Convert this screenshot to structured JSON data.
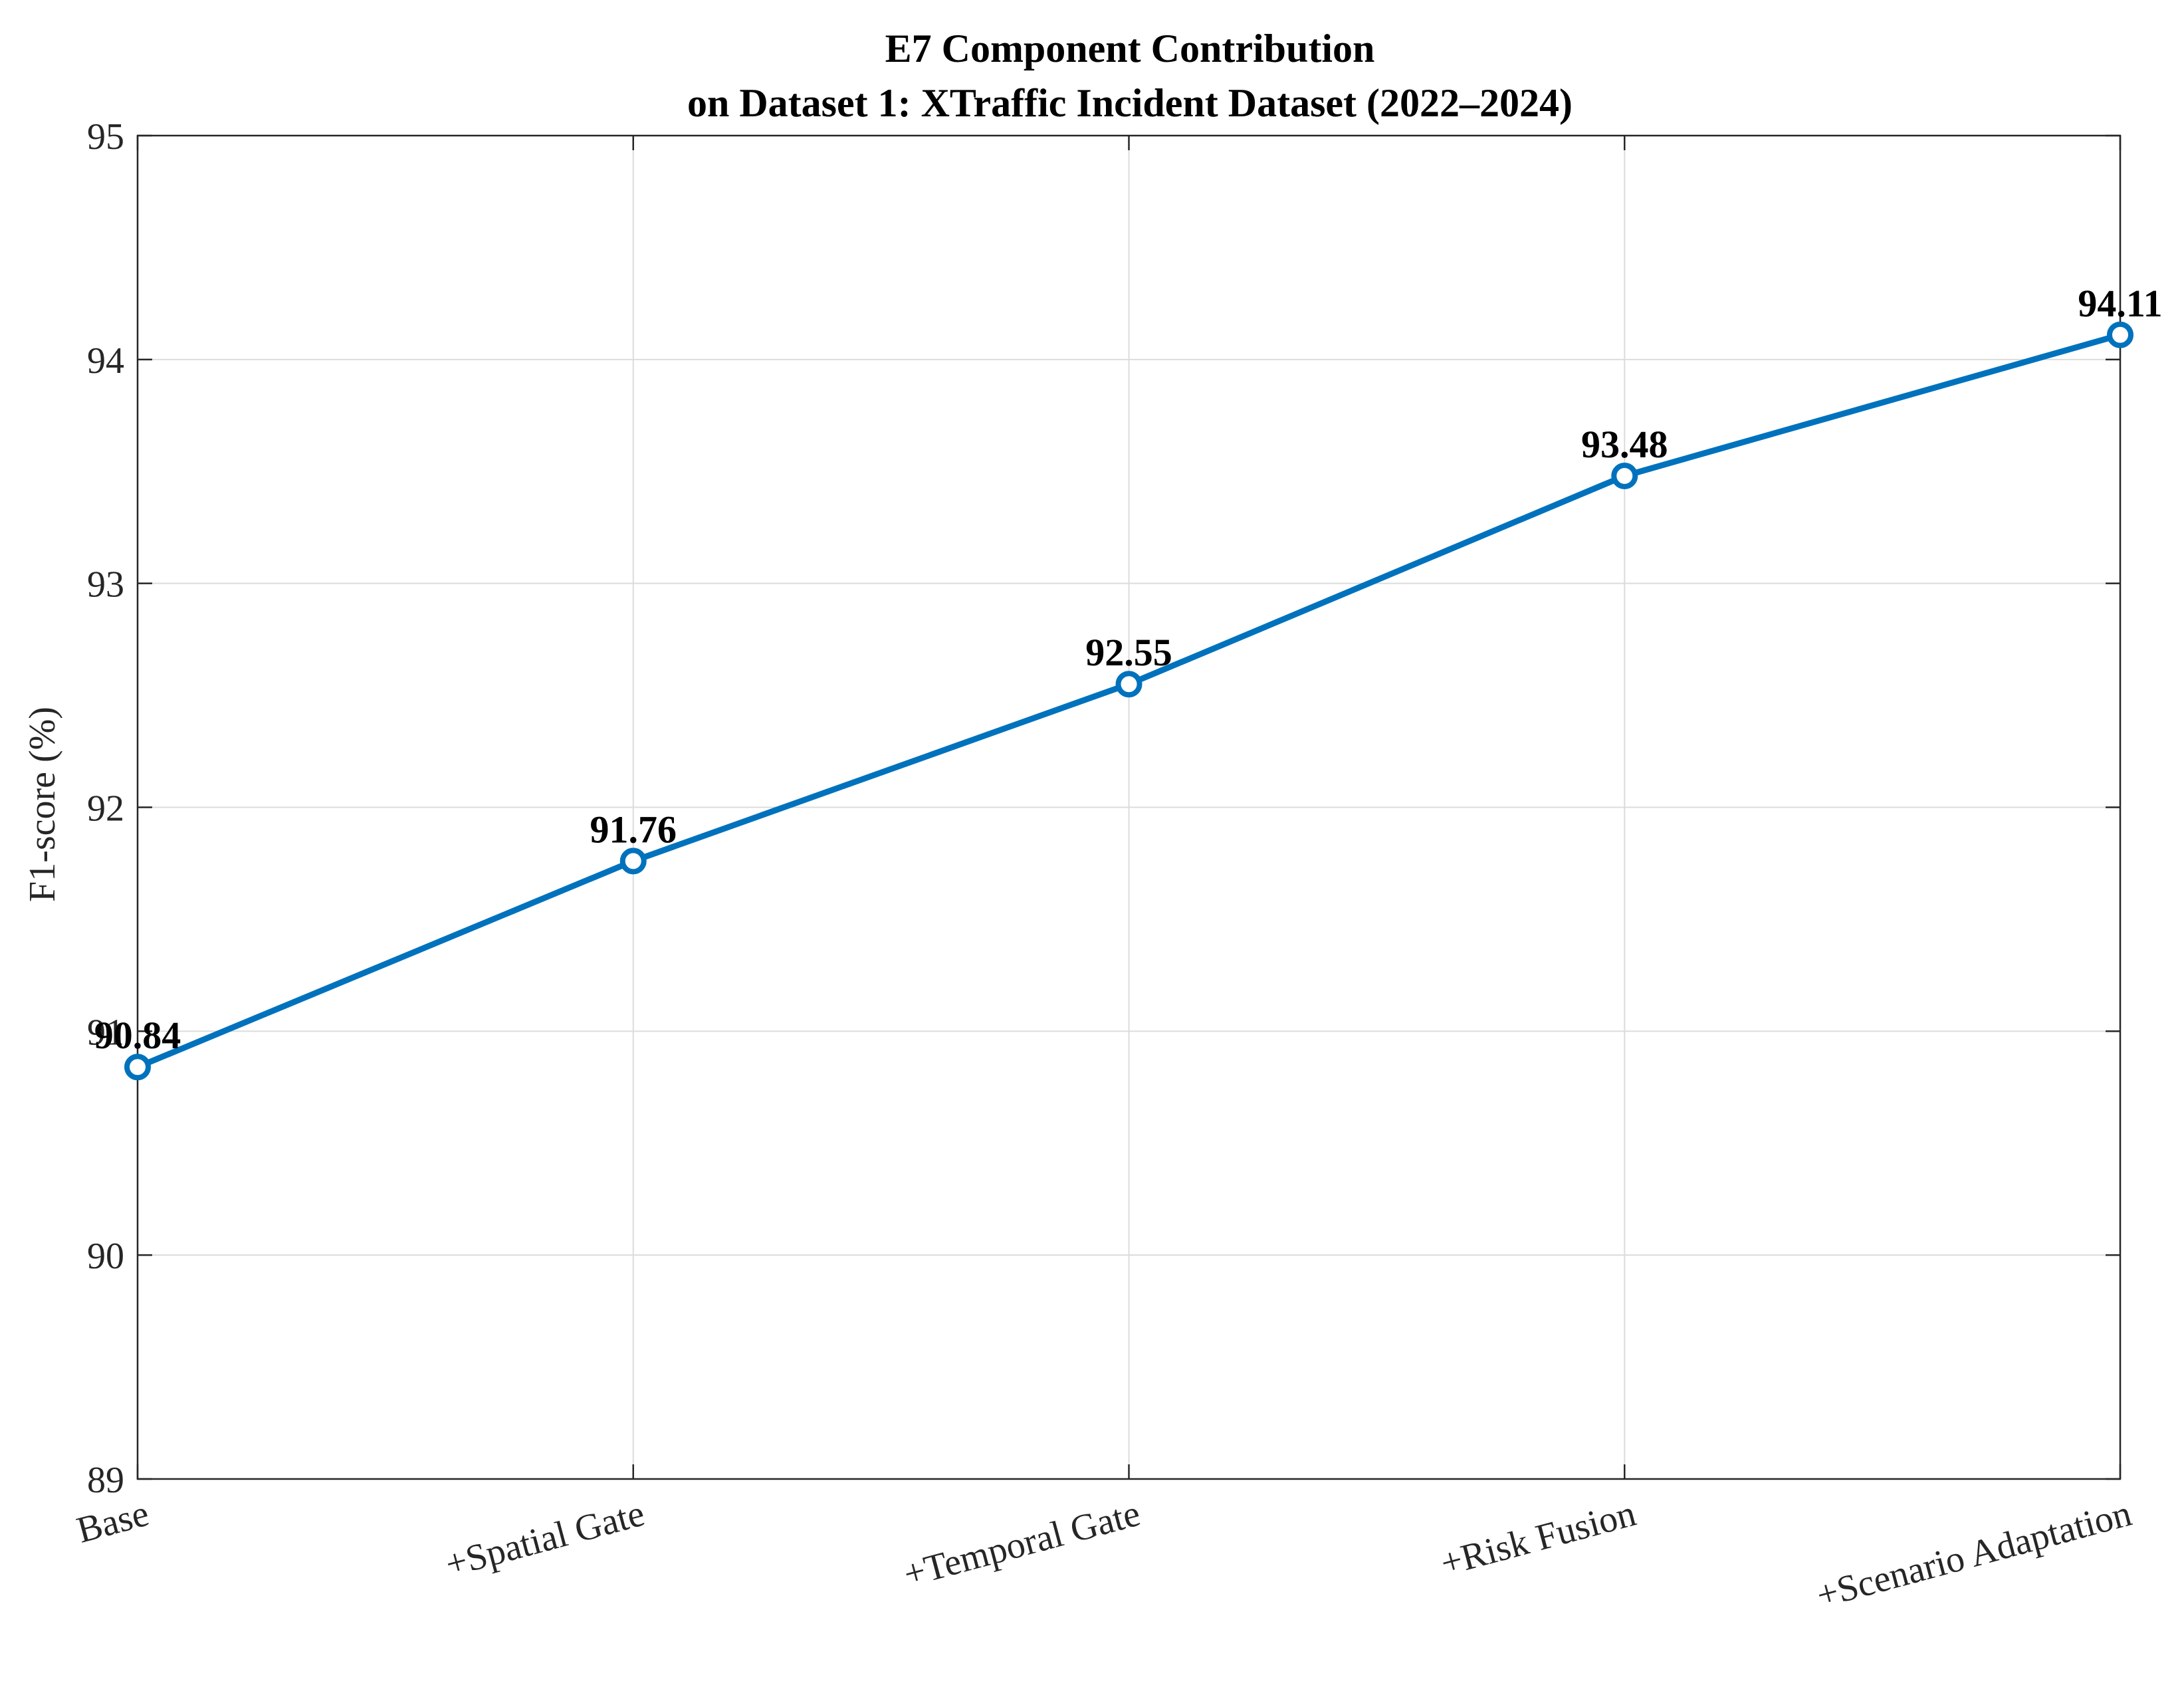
{
  "chart_data": {
    "type": "line",
    "title": "E7 Component Contribution",
    "subtitle": "on Dataset 1: XTraffic Incident Dataset (2022–2024)",
    "xlabel": "",
    "ylabel": "F1-score (%)",
    "categories": [
      "Base",
      "+Spatial Gate",
      "+Temporal Gate",
      "+Risk Fusion",
      "+Scenario Adaptation"
    ],
    "series": [
      {
        "values": [
          90.84,
          91.76,
          92.55,
          93.48,
          94.11
        ],
        "color": "#0072BD",
        "marker": "circle"
      }
    ],
    "data_labels": [
      "90.84",
      "91.76",
      "92.55",
      "93.48",
      "94.11"
    ],
    "ylim": [
      89,
      95
    ],
    "yticks": [
      89,
      90,
      91,
      92,
      93,
      94,
      95
    ],
    "ytick_labels": [
      "89",
      "90",
      "91",
      "92",
      "93",
      "94",
      "95"
    ],
    "grid": true,
    "legend": "none",
    "x_tick_rotation_deg": 15
  }
}
